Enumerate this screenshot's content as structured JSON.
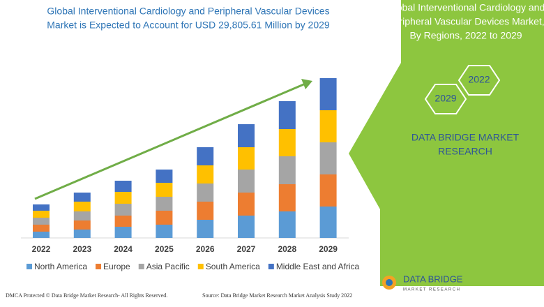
{
  "header": {
    "title_line1": "Global Interventional Cardiology and Peripheral Vascular Devices",
    "title_line2": "Market is Expected to Account for USD 29,805.61 Million by 2029"
  },
  "right_panel": {
    "title_lines": [
      "Global Interventional Cardiology and",
      "Peripheral Vascular Devices Market,",
      "By Regions, 2022 to 2029"
    ],
    "hex_top": "2022",
    "hex_bottom": "2029",
    "brand_lines": [
      "DATA BRIDGE MARKET",
      "RESEARCH"
    ]
  },
  "footer": {
    "dmca": "DMCA Protected © Data Bridge Market Research- All Rights Reserved.",
    "source": "Source: Data Bridge Market Research Market Analysis Study 2022",
    "logo_main": "DATA BRIDGE",
    "logo_sub": "MARKET RESEARCH"
  },
  "chart_data": {
    "type": "stacked-bar",
    "categories": [
      "2022",
      "2023",
      "2024",
      "2025",
      "2026",
      "2027",
      "2028",
      "2029"
    ],
    "series": [
      {
        "name": "North America",
        "color": "#5b9bd5",
        "values": [
          9,
          12,
          16,
          19,
          26,
          32,
          38,
          45
        ]
      },
      {
        "name": "Europe",
        "color": "#ed7d31",
        "values": [
          10,
          13,
          16,
          20,
          26,
          33,
          39,
          46
        ]
      },
      {
        "name": "Asia Pacific",
        "color": "#a5a5a5",
        "values": [
          10,
          13,
          17,
          20,
          26,
          33,
          40,
          46
        ]
      },
      {
        "name": "South America",
        "color": "#ffc000",
        "values": [
          10,
          14,
          17,
          20,
          26,
          32,
          39,
          46
        ]
      },
      {
        "name": "Middle East and Africa",
        "color": "#4472c4",
        "values": [
          9,
          13,
          16,
          19,
          26,
          33,
          40,
          46
        ]
      }
    ]
  }
}
